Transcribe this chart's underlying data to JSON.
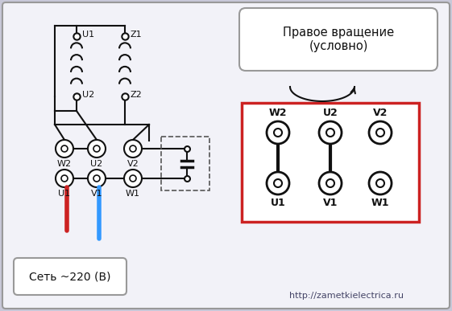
{
  "bg_color": "#c8c8d8",
  "inner_bg": "#f2f2f8",
  "red_wire": "#cc2222",
  "blue_wire": "#3399ff",
  "black": "#111111",
  "red_border": "#cc2222",
  "gray_border": "#999999",
  "title_text": "Правое вращение\n(условно)",
  "bottom_label": "Сеть ~220 (В)",
  "website": "http://zametkielectrica.ru"
}
